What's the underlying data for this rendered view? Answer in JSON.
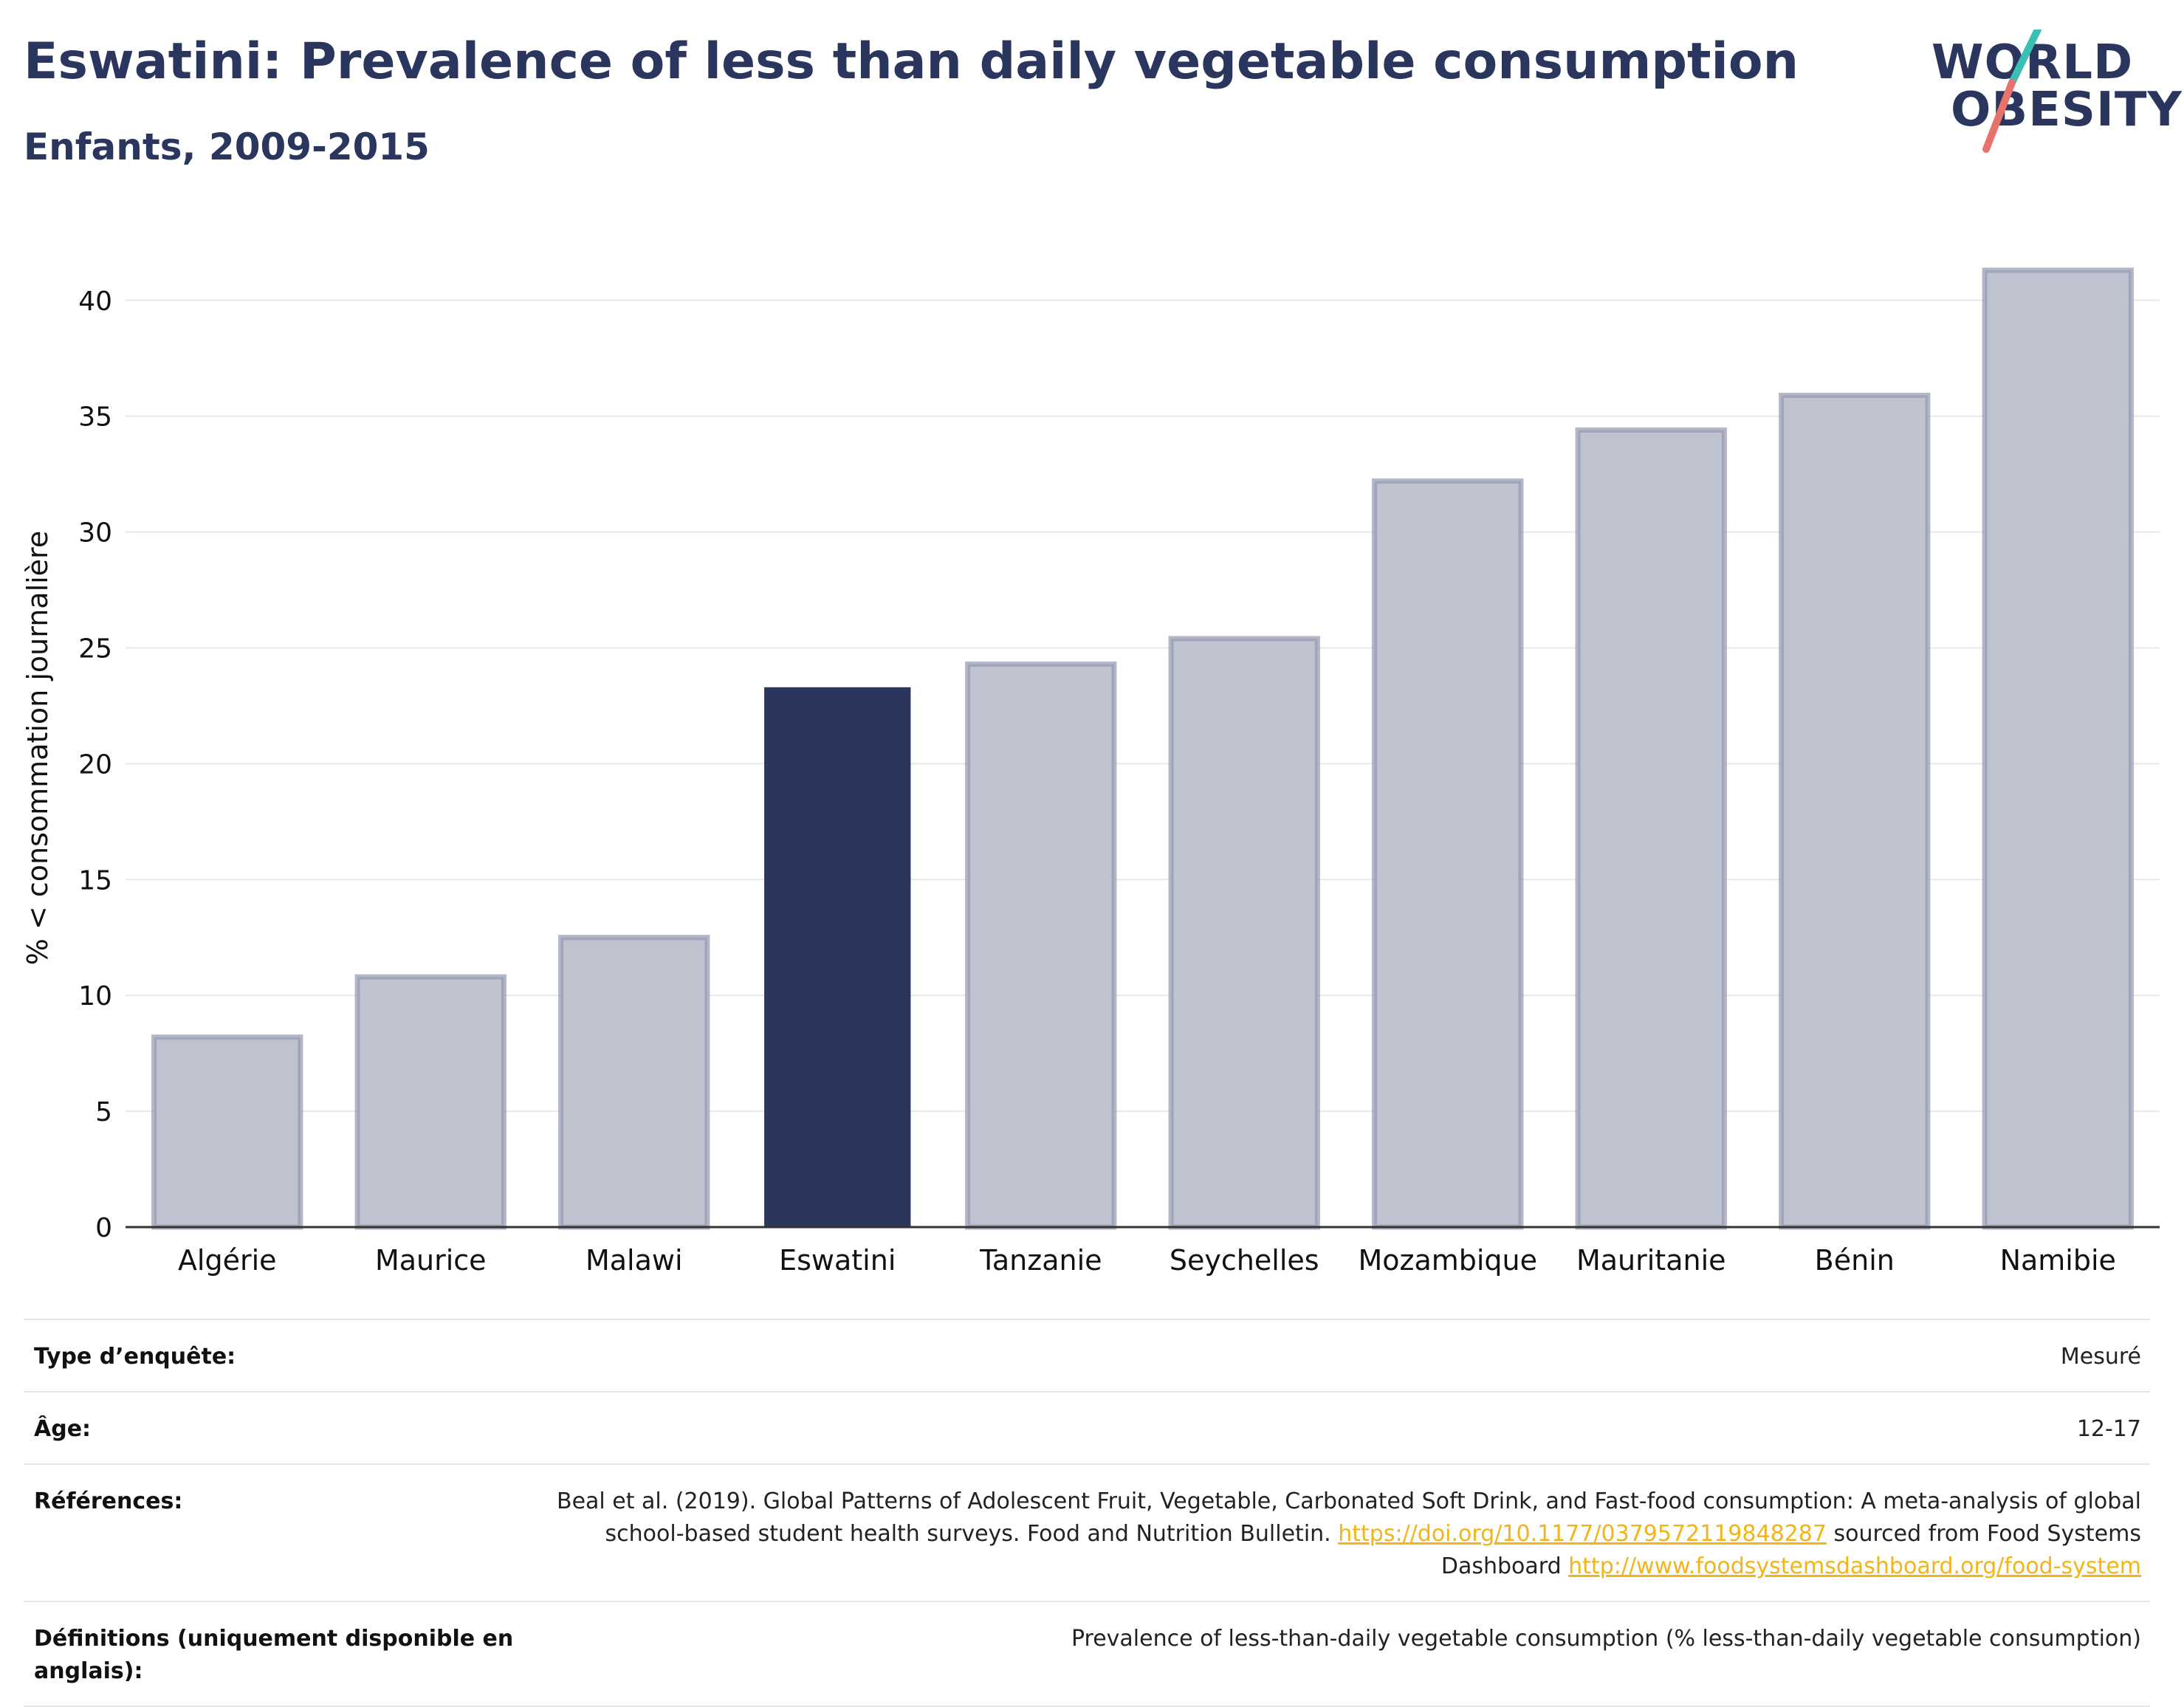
{
  "header": {
    "title": "Eswatini: Prevalence of less than daily vegetable consumption",
    "subtitle": "Enfants, 2009-2015"
  },
  "logo": {
    "line1": "WORLD",
    "line2": "OBESITY",
    "accent_teal": "#3bbfb4",
    "accent_coral": "#e8736a"
  },
  "colors": {
    "highlight": "#2b365f",
    "bar_fill": "#bfc2cf",
    "bar_stroke": "#9499b0",
    "grid": "#e8e8e8"
  },
  "chart_data": {
    "type": "bar",
    "categories": [
      "Algérie",
      "Maurice",
      "Malawi",
      "Eswatini",
      "Tanzanie",
      "Seychelles",
      "Mozambique",
      "Mauritanie",
      "Bénin",
      "Namibie"
    ],
    "values": [
      8.2,
      10.8,
      12.5,
      23.3,
      24.3,
      25.4,
      32.2,
      34.4,
      35.9,
      41.3
    ],
    "highlight": "Eswatini",
    "title": "Eswatini: Prevalence of less than daily vegetable consumption",
    "xlabel": "",
    "ylabel": "% < consommation journalière",
    "ylim": [
      0,
      42
    ],
    "yticks": [
      0,
      5,
      10,
      15,
      20,
      25,
      30,
      35,
      40
    ],
    "grid": true
  },
  "meta": {
    "survey_label": "Type d’enquête:",
    "survey_value": "Mesuré",
    "age_label": "Âge:",
    "age_value": "12-17",
    "refs_label": "Références:",
    "refs_text1": "Beal et al. (2019). Global Patterns of Adolescent Fruit, Vegetable, Carbonated Soft Drink, and Fast-food consumption: A meta-analysis of global school-based student health surveys. Food and Nutrition Bulletin. ",
    "refs_link1": "https://doi.org/10.1177/0379572119848287",
    "refs_text2": " sourced from Food Systems Dashboard ",
    "refs_link2": "http://www.foodsystemsdashboard.org/food-system",
    "defs_label": "Définitions (uniquement disponible en anglais):",
    "defs_value": "Prevalence of less-than-daily vegetable consumption (% less-than-daily vegetable consumption)"
  }
}
